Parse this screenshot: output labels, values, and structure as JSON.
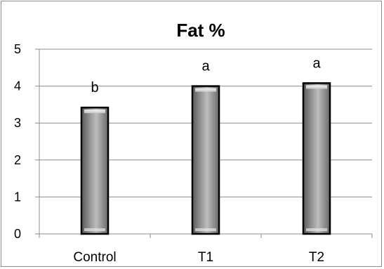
{
  "chart_data": {
    "type": "bar",
    "title": "Fat %",
    "xlabel": "",
    "ylabel": "",
    "categories": [
      "Control",
      "T1",
      "T2"
    ],
    "values": [
      3.42,
      4.0,
      4.08
    ],
    "data_labels": [
      "b",
      "a",
      "a"
    ],
    "ylim": [
      0,
      5
    ],
    "yticks": [
      "0",
      "1",
      "2",
      "3",
      "4",
      "5"
    ],
    "grid": true,
    "legend": "none",
    "colors": {
      "bar_fill": "#9a9a9a",
      "bar_outline": "#000000",
      "gridline": "#8c8c8c"
    }
  }
}
